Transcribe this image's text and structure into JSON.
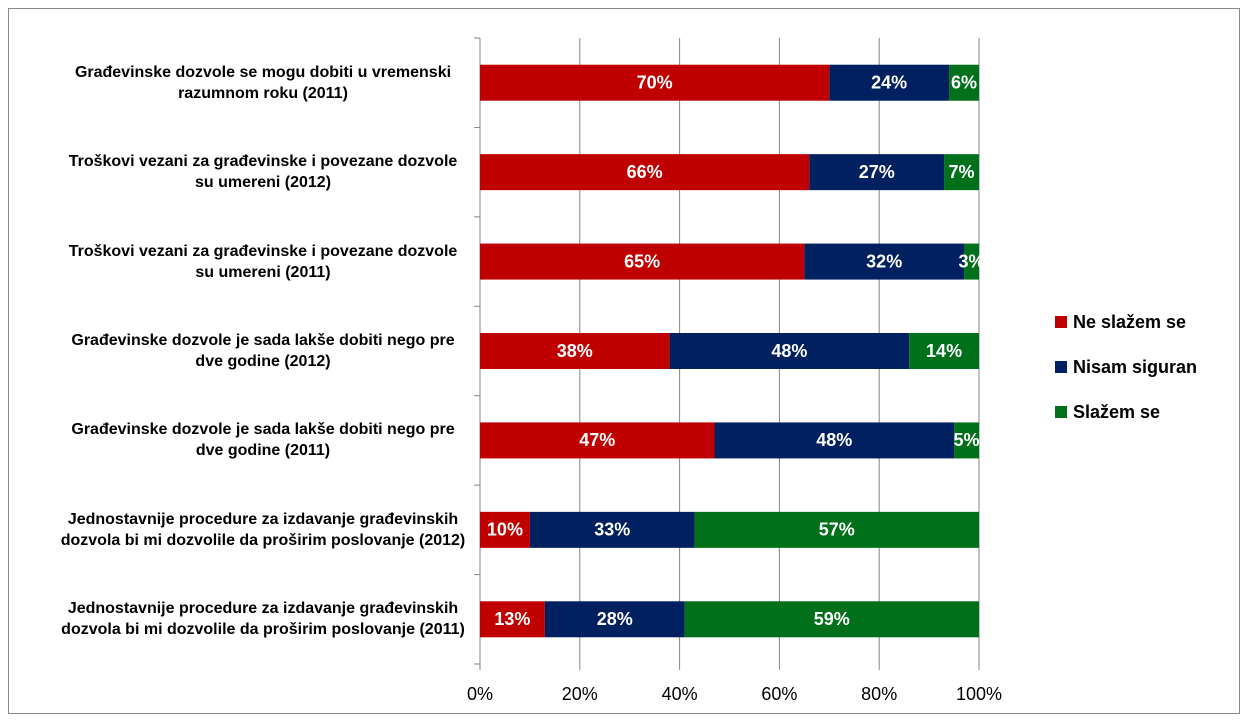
{
  "chart_data": {
    "type": "bar",
    "orientation": "horizontal",
    "stacked": true,
    "categories": [
      "Građevinske dozvole se mogu dobiti u vremenski razumnom roku (2011)",
      "Troškovi vezani za građevinske i povezane dozvole su umereni (2012)",
      "Troškovi vezani za građevinske i povezane dozvole su umereni (2011)",
      "Građevinske dozvole je sada lakše dobiti nego pre dve godine (2012)",
      "Građevinske dozvole je sada lakše dobiti nego pre dve godine (2011)",
      "Jednostavnije procedure za izdavanje građevinskih dozvola bi mi dozvolile da proširim poslovanje (2012)",
      "Jednostavnije procedure za izdavanje građevinskih dozvola bi mi dozvolile da proširim poslovanje (2011)"
    ],
    "series": [
      {
        "name": "Ne slažem se",
        "color": "#c00000",
        "values": [
          70,
          66,
          65,
          38,
          47,
          10,
          13
        ],
        "value_labels": [
          "70%",
          "66%",
          "65%",
          "38%",
          "47%",
          "10%",
          "13%"
        ]
      },
      {
        "name": "Nisam siguran",
        "color": "#002060",
        "values": [
          24,
          27,
          32,
          48,
          48,
          33,
          28
        ],
        "value_labels": [
          "24%",
          "27%",
          "32%",
          "48%",
          "48%",
          "33%",
          "28%"
        ]
      },
      {
        "name": "Slažem se",
        "color": "#00701a",
        "values": [
          6,
          7,
          3,
          14,
          5,
          57,
          59
        ],
        "value_labels": [
          "6%",
          "7%",
          "3%",
          "14%",
          "5%",
          "57%",
          "59%"
        ]
      }
    ],
    "xlim": [
      0,
      100
    ],
    "xticks": [
      {
        "value": 0,
        "label": "0%"
      },
      {
        "value": 20,
        "label": "20%"
      },
      {
        "value": 40,
        "label": "40%"
      },
      {
        "value": 60,
        "label": "60%"
      },
      {
        "value": 80,
        "label": "80%"
      },
      {
        "value": 100,
        "label": "100%"
      }
    ],
    "grid": true,
    "legend": "right"
  }
}
